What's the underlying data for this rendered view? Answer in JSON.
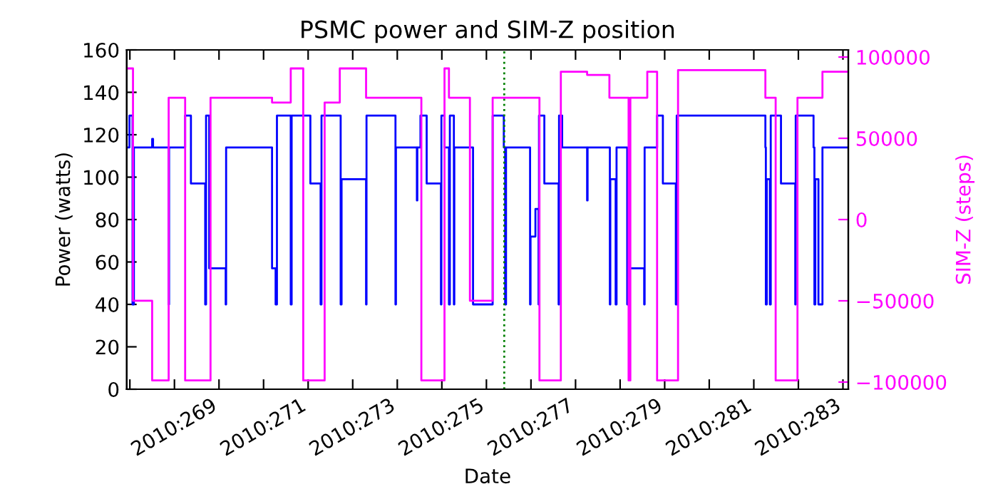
{
  "chart_data": {
    "type": "step",
    "title": "PSMC power and SIM-Z position",
    "xlabel": "Date",
    "ylabel": "Power (watts)",
    "y2label": "SIM-Z (steps)",
    "xlim": [
      "2010-09-24T22:19",
      "2010-10-11T02:53"
    ],
    "xticks": [
      {
        "value": "2010-09-25",
        "label": null
      },
      {
        "value": "2010-09-26",
        "label": "2010:269"
      },
      {
        "value": "2010-09-27",
        "label": null
      },
      {
        "value": "2010-09-28",
        "label": "2010:271"
      },
      {
        "value": "2010-09-29",
        "label": null
      },
      {
        "value": "2010-09-30",
        "label": "2010:273"
      },
      {
        "value": "2010-10-01",
        "label": null
      },
      {
        "value": "2010-10-02",
        "label": "2010:275"
      },
      {
        "value": "2010-10-03",
        "label": null
      },
      {
        "value": "2010-10-04",
        "label": "2010:277"
      },
      {
        "value": "2010-10-05",
        "label": null
      },
      {
        "value": "2010-10-06",
        "label": "2010:279"
      },
      {
        "value": "2010-10-07",
        "label": null
      },
      {
        "value": "2010-10-08",
        "label": "2010:281"
      },
      {
        "value": "2010-10-09",
        "label": null
      },
      {
        "value": "2010-10-10",
        "label": "2010:283"
      },
      {
        "value": "2010-10-11",
        "label": null
      }
    ],
    "ylim": [
      0,
      160
    ],
    "yticks": [
      0,
      20,
      40,
      60,
      80,
      100,
      120,
      140,
      160
    ],
    "y2lim": [
      -104400,
      104400
    ],
    "y2ticks": [
      -100000,
      -50000,
      0,
      50000,
      100000
    ],
    "marker": "none",
    "line_style": "solid",
    "grid": false,
    "legend": false,
    "ref_lines": [
      {
        "axis": "x",
        "value": "2010-10-03T09:36",
        "color": "#008000",
        "line_style": "dotted"
      }
    ],
    "series": [
      {
        "color": "#0000ff",
        "x": [
          "2010-09-24T23:02",
          "2010-09-24T23:46",
          "2010-09-25T01:26",
          "2010-09-25T02:10",
          "2010-09-25T12:00",
          "2010-09-25T12:29",
          "2010-09-25T20:53",
          "2010-09-25T21:07",
          "2010-09-26T05:46",
          "2010-09-26T08:53",
          "2010-09-26T16:34",
          "2010-09-26T17:02",
          "2010-09-26T18:43",
          "2010-09-27T03:36",
          "2010-09-27T03:50",
          "2010-09-28T04:34",
          "2010-09-28T06:29",
          "2010-09-28T07:12",
          "2010-09-28T14:38",
          "2010-09-28T15:07",
          "2010-09-29T01:12",
          "2010-09-29T06:43",
          "2010-09-29T07:12",
          "2010-09-29T17:31",
          "2010-09-29T18:00",
          "2010-09-30T07:12",
          "2010-09-30T07:26",
          "2010-09-30T23:02",
          "2010-09-30T23:17",
          "2010-10-01T10:34",
          "2010-10-01T10:48",
          "2010-10-01T12:29",
          "2010-10-01T15:50",
          "2010-10-01T23:31",
          "2010-10-01T23:46",
          "2010-10-02T01:26",
          "2010-10-02T03:50",
          "2010-10-02T04:19",
          "2010-10-02T06:29",
          "2010-10-02T06:43",
          "2010-10-02T16:48",
          "2010-10-03T03:22",
          "2010-10-03T09:22",
          "2010-10-03T10:05",
          "2010-10-03T10:34",
          "2010-10-03T23:31",
          "2010-10-03T23:46",
          "2010-10-04T02:24",
          "2010-10-04T04:05",
          "2010-10-04T04:19",
          "2010-10-04T07:12",
          "2010-10-04T14:53",
          "2010-10-04T15:07",
          "2010-10-04T16:48",
          "2010-10-05T06:14",
          "2010-10-05T06:29",
          "2010-10-05T18:29",
          "2010-10-05T18:43",
          "2010-10-05T21:36",
          "2010-10-05T22:05",
          "2010-10-06T03:50",
          "2010-10-06T04:19",
          "2010-10-06T12:58",
          "2010-10-06T13:12",
          "2010-10-06T19:55",
          "2010-10-06T23:02",
          "2010-10-07T06:00",
          "2010-10-07T06:29",
          "2010-10-09T06:14",
          "2010-10-09T06:29",
          "2010-10-09T06:58",
          "2010-10-09T08:38",
          "2010-10-09T09:07",
          "2010-10-09T14:38",
          "2010-10-09T22:19",
          "2010-10-09T22:34",
          "2010-10-10T08:10",
          "2010-10-10T08:38",
          "2010-10-10T09:07",
          "2010-10-10T10:48",
          "2010-10-10T12:58",
          "2010-10-11T02:53"
        ],
        "values": [
          114,
          129,
          40,
          114,
          118,
          114,
          40,
          114,
          129,
          97,
          40,
          129,
          57,
          40,
          114,
          57,
          40,
          129,
          40,
          129,
          97,
          40,
          129,
          40,
          99,
          40,
          129,
          40,
          114,
          89,
          114,
          129,
          97,
          40,
          129,
          114,
          40,
          129,
          40,
          114,
          40,
          129,
          114,
          40,
          114,
          40,
          72,
          85,
          40,
          129,
          97,
          40,
          129,
          114,
          89,
          114,
          40,
          99,
          40,
          114,
          40,
          57,
          40,
          114,
          129,
          97,
          40,
          129,
          114,
          40,
          99,
          40,
          129,
          97,
          40,
          129,
          114,
          40,
          99,
          40,
          114,
          114
        ]
      },
      {
        "color": "#ff00ff",
        "axis": "y2",
        "x": [
          "2010-09-24T22:19",
          "2010-09-25T01:41",
          "2010-09-25T12:00",
          "2010-09-25T20:53",
          "2010-09-26T05:46",
          "2010-09-26T19:26",
          "2010-09-28T04:34",
          "2010-09-28T14:38",
          "2010-09-28T21:22",
          "2010-09-29T08:53",
          "2010-09-29T17:02",
          "2010-09-30T07:12",
          "2010-10-01T12:58",
          "2010-10-02T01:26",
          "2010-10-02T03:50",
          "2010-10-02T15:07",
          "2010-10-03T03:22",
          "2010-10-04T04:34",
          "2010-10-04T16:05",
          "2010-10-05T06:14",
          "2010-10-05T18:14",
          "2010-10-06T04:34",
          "2010-10-06T05:31",
          "2010-10-06T14:38",
          "2010-10-06T19:55",
          "2010-10-07T07:12",
          "2010-10-09T06:14",
          "2010-10-09T11:46",
          "2010-10-09T23:31",
          "2010-10-10T12:58",
          "2010-10-11T02:53"
        ],
        "values": [
          93000,
          -50000,
          -99000,
          75000,
          -99000,
          75000,
          72000,
          93000,
          -99000,
          72000,
          93000,
          75000,
          -99000,
          93000,
          75000,
          -50000,
          75000,
          -99000,
          91000,
          89000,
          75000,
          -99000,
          75000,
          91000,
          -99000,
          92000,
          75000,
          -99000,
          75000,
          91000,
          91000
        ]
      }
    ]
  }
}
